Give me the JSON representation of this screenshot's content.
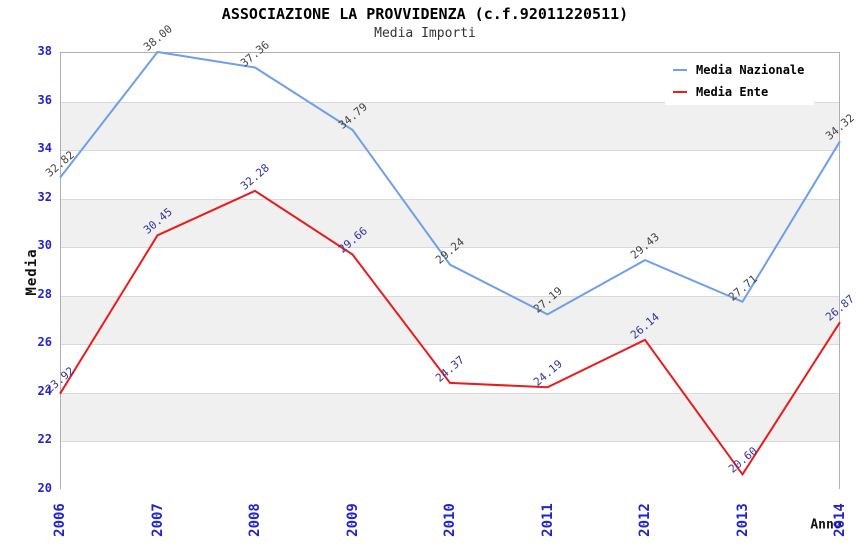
{
  "title": "ASSOCIAZIONE LA PROVVIDENZA (c.f.92011220511)",
  "subtitle": "Media Importi",
  "axes": {
    "y_label": "Media",
    "x_label": "Anno",
    "y_ticks": [
      38,
      36,
      34,
      32,
      30,
      28,
      26,
      24,
      22,
      20
    ],
    "x_ticks": [
      "2006",
      "2007",
      "2008",
      "2009",
      "2010",
      "2011",
      "2012",
      "2013",
      "2014"
    ]
  },
  "colors": {
    "tick_label": "#2323cc",
    "band_gray": "#f0f0f0",
    "gridline": "#d9d9d9",
    "plot_border": "#b0b0b0",
    "national_line": "#6f9fe6",
    "entity_line": "#e81c1c",
    "national_value_label": "#444444",
    "entity_value_label": "#333399"
  },
  "legend": {
    "items": [
      {
        "label": "Media Nazionale",
        "color": "#6f9fe6"
      },
      {
        "label": "Media Ente",
        "color": "#e81c1c"
      }
    ]
  },
  "chart_data": {
    "type": "line",
    "title": "ASSOCIAZIONE LA PROVVIDENZA (c.f.92011220511)",
    "subtitle": "Media Importi",
    "xlabel": "Anno",
    "ylabel": "Media",
    "x": [
      2006,
      2007,
      2008,
      2009,
      2010,
      2011,
      2012,
      2013,
      2014
    ],
    "series": [
      {
        "name": "Media Nazionale",
        "color": "#6f9fe6",
        "label_color": "#444444",
        "values": [
          32.82,
          38.0,
          37.36,
          34.79,
          29.24,
          27.19,
          29.43,
          27.71,
          34.32
        ]
      },
      {
        "name": "Media Ente",
        "color": "#e81c1c",
        "label_color": "#333399",
        "values": [
          23.92,
          30.45,
          32.28,
          29.66,
          24.37,
          24.19,
          26.14,
          20.6,
          26.87
        ]
      }
    ],
    "ylim": [
      20,
      38
    ],
    "y_step": 2,
    "grid": true,
    "alternating_bands": true,
    "legend_position": "top-right",
    "value_labels": "2-decimals, rotated -40deg above each point"
  }
}
